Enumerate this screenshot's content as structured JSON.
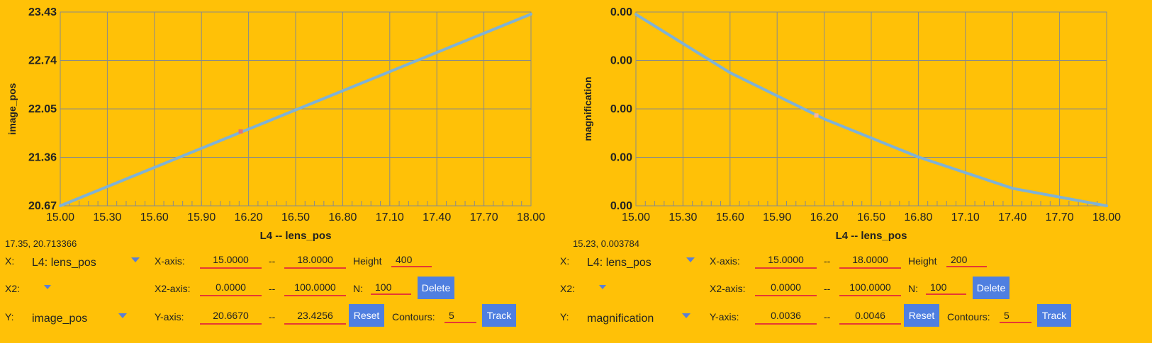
{
  "colors": {
    "background": "#FFC107",
    "grid": "#8a8a8a",
    "series": "#7FB2D6",
    "marker": "#E57373",
    "field_underline": "#E53935",
    "button": "#4F7FE0",
    "dropdown_caret": "#5B7FD6"
  },
  "chart_data": [
    {
      "type": "line",
      "xlabel": "L4 -- lens_pos",
      "ylabel": "image_pos",
      "xlim": [
        15.0,
        18.0
      ],
      "ylim": [
        20.67,
        23.43
      ],
      "x_ticks": [
        "15.00",
        "15.30",
        "15.60",
        "15.90",
        "16.20",
        "16.50",
        "16.80",
        "17.10",
        "17.40",
        "17.70",
        "18.00"
      ],
      "y_ticks": [
        "20.67",
        "21.36",
        "22.05",
        "22.74",
        "23.43"
      ],
      "grid": true,
      "series": [
        {
          "x": [
            15.0,
            18.0
          ],
          "y": [
            20.67,
            23.4
          ]
        }
      ],
      "marker": {
        "x": 16.15,
        "y": 21.73
      }
    },
    {
      "type": "line",
      "xlabel": "L4 -- lens_pos",
      "ylabel": "magnification",
      "xlim": [
        15.0,
        18.0
      ],
      "ylim": [
        0.0036,
        0.0046
      ],
      "x_ticks": [
        "15.00",
        "15.30",
        "15.60",
        "15.90",
        "16.20",
        "16.50",
        "16.80",
        "17.10",
        "17.40",
        "17.70",
        "18.00"
      ],
      "y_ticks": [
        "0.00",
        "0.00",
        "0.00",
        "0.00",
        "0.00"
      ],
      "grid": true,
      "series": [
        {
          "x": [
            15.0,
            15.6,
            16.2,
            16.8,
            17.4,
            18.0
          ],
          "y": [
            0.004588,
            0.004287,
            0.004048,
            0.003852,
            0.00369,
            0.0036
          ]
        }
      ],
      "marker": {
        "x": 16.15,
        "y": 0.004066
      }
    }
  ],
  "panels": [
    {
      "coord_readout": "17.35, 20.713366",
      "x_label": "X:",
      "x_select": "L4: lens_pos",
      "x2_label": "X2:",
      "x2_select": "",
      "y_label": "Y:",
      "y_select": "image_pos",
      "xaxis_label": "X-axis:",
      "xaxis_min": "15.0000",
      "xaxis_max": "18.0000",
      "x2axis_label": "X2-axis:",
      "x2axis_min": "0.0000",
      "x2axis_max": "100.0000",
      "yaxis_label": "Y-axis:",
      "yaxis_min": "20.6670",
      "yaxis_max": "23.4256",
      "sep": "--",
      "height_label": "Height",
      "height_value": "400",
      "n_label": "N:",
      "n_value": "100",
      "contours_label": "Contours:",
      "contours_value": "5",
      "delete_label": "Delete",
      "reset_label": "Reset",
      "track_label": "Track"
    },
    {
      "coord_readout": "15.23, 0.003784",
      "x_label": "X:",
      "x_select": "L4: lens_pos",
      "x2_label": "X2:",
      "x2_select": "",
      "y_label": "Y:",
      "y_select": "magnification",
      "xaxis_label": "X-axis:",
      "xaxis_min": "15.0000",
      "xaxis_max": "18.0000",
      "x2axis_label": "X2-axis:",
      "x2axis_min": "0.0000",
      "x2axis_max": "100.0000",
      "yaxis_label": "Y-axis:",
      "yaxis_min": "0.0036",
      "yaxis_max": "0.0046",
      "sep": "--",
      "height_label": "Height",
      "height_value": "200",
      "n_label": "N:",
      "n_value": "100",
      "contours_label": "Contours:",
      "contours_value": "5",
      "delete_label": "Delete",
      "reset_label": "Reset",
      "track_label": "Track"
    }
  ]
}
